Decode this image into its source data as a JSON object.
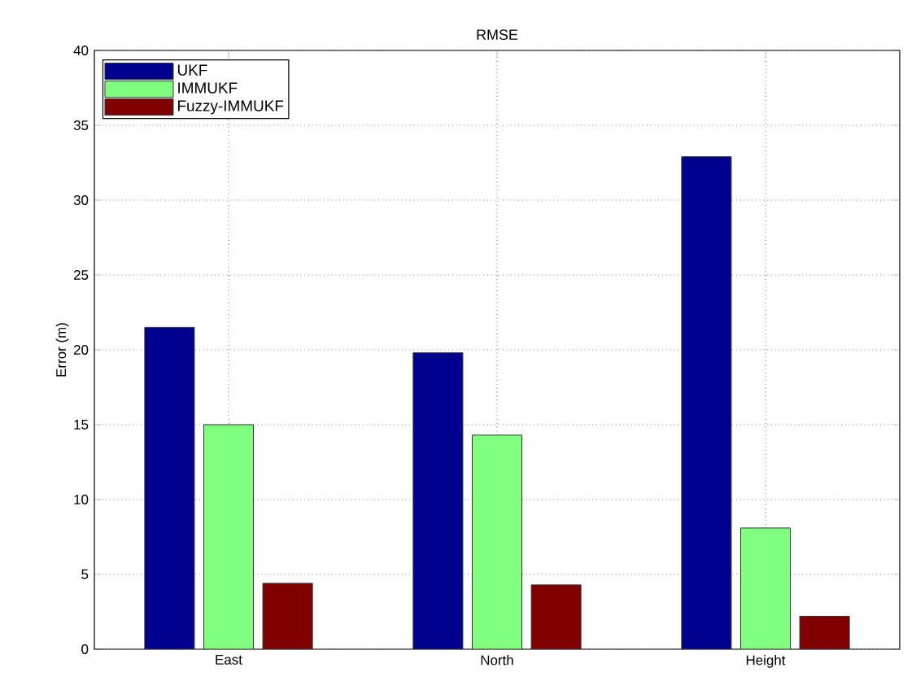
{
  "chart_data": {
    "type": "bar",
    "title": "RMSE",
    "ylabel": "Error (m)",
    "categories": [
      "East",
      "North",
      "Height"
    ],
    "series": [
      {
        "name": "UKF",
        "color": "#00008f",
        "values": [
          21.5,
          19.8,
          32.9
        ]
      },
      {
        "name": "IMMUKF",
        "color": "#80ff80",
        "values": [
          15.0,
          14.3,
          8.1
        ]
      },
      {
        "name": "Fuzzy-IMMUKF",
        "color": "#800000",
        "values": [
          4.4,
          4.3,
          2.2
        ]
      }
    ],
    "ylim": [
      0,
      40
    ],
    "yticks": [
      0,
      5,
      10,
      15,
      20,
      25,
      30,
      35,
      40
    ],
    "grid": true,
    "legend": "top left"
  }
}
